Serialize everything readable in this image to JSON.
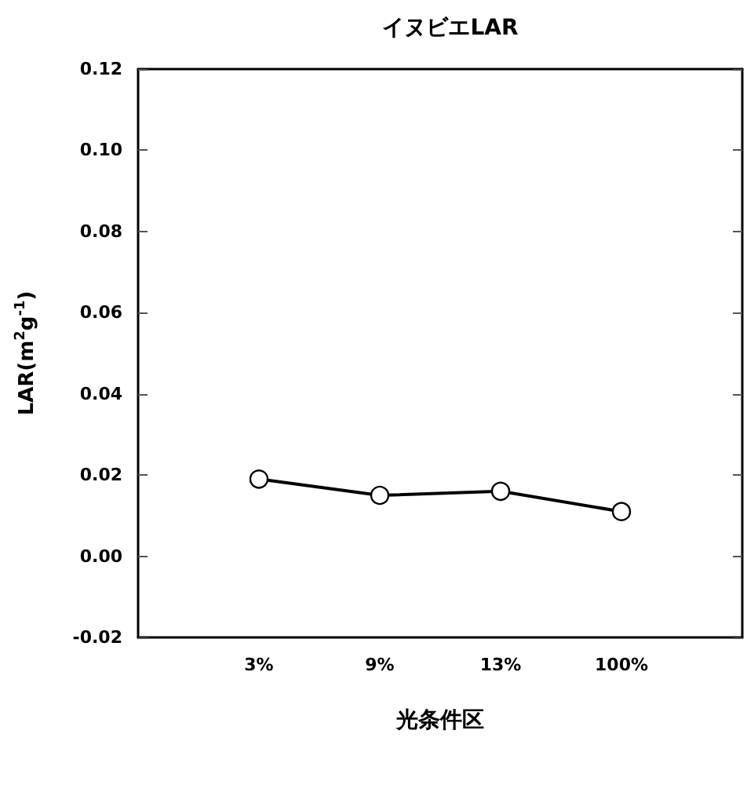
{
  "chart_data": {
    "type": "line",
    "title": "イヌビエLAR",
    "xlabel": "光条件区",
    "ylabel": "LAR(m$^{2}$g$^{-1}$)",
    "categories": [
      "3%",
      "9%",
      "13%",
      "100%"
    ],
    "series": [
      {
        "color": "#000000",
        "values": [
          0.019,
          0.015,
          0.016,
          0.011
        ]
      }
    ],
    "ylim": [
      -0.02,
      0.12
    ],
    "yticks": [
      {
        "value": -0.02,
        "label": "-0.02"
      },
      {
        "value": 0,
        "label": "0.00"
      },
      {
        "value": 0.02,
        "label": "0.02"
      },
      {
        "value": 0.04,
        "label": "0.04"
      },
      {
        "value": 0.06,
        "label": "0.06"
      },
      {
        "value": 0.08,
        "label": "0.08"
      },
      {
        "value": 0.1,
        "label": "0.10"
      },
      {
        "value": 0.12,
        "label": "0.12"
      }
    ],
    "grid": false,
    "marker": "circle",
    "line_style": "solid"
  }
}
